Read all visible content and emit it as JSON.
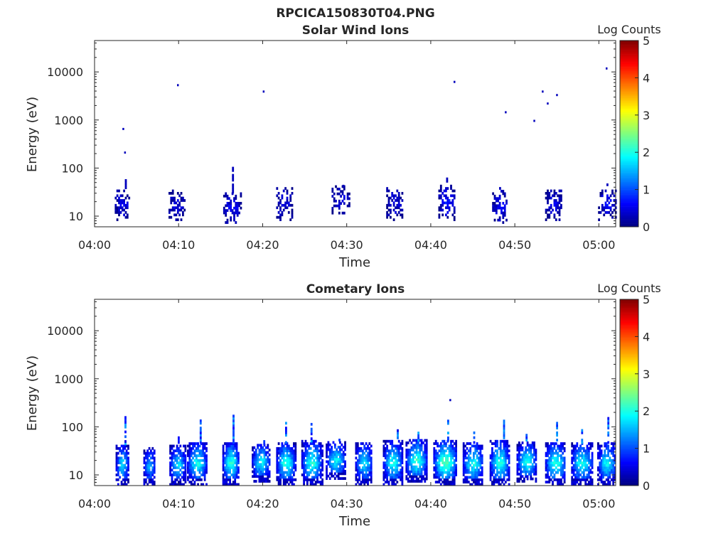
{
  "figure": {
    "title": "RPCICA150830T04.PNG"
  },
  "colormap": [
    "#00007f",
    "#0000ff",
    "#007fff",
    "#00ffff",
    "#7fff7f",
    "#ffff00",
    "#ff7f00",
    "#ff0000",
    "#7f0000"
  ],
  "chart_data": [
    {
      "type": "heatmap",
      "title": "Solar Wind Ions",
      "xlabel": "Time",
      "ylabel": "Energy (eV)",
      "xlim": [
        "04:00",
        "05:02"
      ],
      "xticks": [
        "04:00",
        "04:10",
        "04:20",
        "04:30",
        "04:40",
        "04:50",
        "05:00"
      ],
      "yscale": "log",
      "ylim": [
        6,
        45000
      ],
      "yticks": [
        10,
        100,
        1000,
        10000
      ],
      "ytick_labels": [
        "10",
        "100",
        "1000",
        "10000"
      ],
      "colorbar": {
        "label": "Log Counts",
        "range": [
          0,
          5
        ],
        "ticks": [
          "0",
          "1",
          "2",
          "3",
          "4",
          "5"
        ]
      },
      "scatter_points": [
        {
          "t": 3.4,
          "e": 650,
          "c": 0.3
        },
        {
          "t": 3.6,
          "e": 210,
          "c": 0.3
        },
        {
          "t": 9.9,
          "e": 5300,
          "c": 0.3
        },
        {
          "t": 20.1,
          "e": 3900,
          "c": 0.3
        },
        {
          "t": 42.8,
          "e": 6200,
          "c": 0.3
        },
        {
          "t": 48.9,
          "e": 1450,
          "c": 0.3
        },
        {
          "t": 52.3,
          "e": 960,
          "c": 0.3
        },
        {
          "t": 53.3,
          "e": 3900,
          "c": 0.3
        },
        {
          "t": 53.9,
          "e": 2200,
          "c": 0.3
        },
        {
          "t": 55.0,
          "e": 3300,
          "c": 0.3
        },
        {
          "t": 60.9,
          "e": 11800,
          "c": 0.3
        }
      ],
      "bursts": [
        {
          "t0": 2.4,
          "t1": 4.1,
          "emin": 8,
          "emax": 33,
          "peak": 0.5,
          "spike_e": 55
        },
        {
          "t0": 8.8,
          "t1": 10.6,
          "emin": 8,
          "emax": 32,
          "peak": 0.5,
          "spike_e": 32
        },
        {
          "t0": 15.3,
          "t1": 17.3,
          "emin": 7,
          "emax": 30,
          "peak": 0.6,
          "spike_e": 105
        },
        {
          "t0": 21.6,
          "t1": 23.4,
          "emin": 8,
          "emax": 36,
          "peak": 0.5,
          "spike_e": 36
        },
        {
          "t0": 28.2,
          "t1": 30.2,
          "emin": 11,
          "emax": 40,
          "peak": 0.5,
          "spike_e": 44
        },
        {
          "t0": 34.7,
          "t1": 36.6,
          "emin": 8,
          "emax": 40,
          "peak": 0.5,
          "spike_e": 44
        },
        {
          "t0": 40.9,
          "t1": 42.8,
          "emin": 8,
          "emax": 45,
          "peak": 0.7,
          "spike_e": 65
        },
        {
          "t0": 47.3,
          "t1": 49.1,
          "emin": 7,
          "emax": 32,
          "peak": 0.6,
          "spike_e": 55
        },
        {
          "t0": 53.6,
          "t1": 55.6,
          "emin": 8,
          "emax": 35,
          "peak": 0.5,
          "spike_e": 35
        },
        {
          "t0": 59.9,
          "t1": 62.0,
          "emin": 8,
          "emax": 38,
          "peak": 0.6,
          "spike_e": 44
        }
      ]
    },
    {
      "type": "heatmap",
      "title": "Cometary Ions",
      "xlabel": "Time",
      "ylabel": "Energy (eV)",
      "xlim": [
        "04:00",
        "05:02"
      ],
      "xticks": [
        "04:00",
        "04:10",
        "04:20",
        "04:30",
        "04:40",
        "04:50",
        "05:00"
      ],
      "yscale": "log",
      "ylim": [
        6,
        45000
      ],
      "yticks": [
        10,
        100,
        1000,
        10000
      ],
      "ytick_labels": [
        "10",
        "100",
        "1000",
        "10000"
      ],
      "colorbar": {
        "label": "Log Counts",
        "range": [
          0,
          5
        ],
        "ticks": [
          "0",
          "1",
          "2",
          "3",
          "4",
          "5"
        ]
      },
      "scatter_points": [
        {
          "t": 42.3,
          "e": 360,
          "c": 0.3
        }
      ],
      "bursts": [
        {
          "t0": 2.5,
          "t1": 4.0,
          "emin": 6,
          "emax": 42,
          "peak": 1.8,
          "spike_e": 150
        },
        {
          "t0": 5.8,
          "t1": 7.2,
          "emin": 6,
          "emax": 35,
          "peak": 1.5,
          "spike_e": 35
        },
        {
          "t0": 8.9,
          "t1": 10.8,
          "emin": 6,
          "emax": 40,
          "peak": 1.8,
          "spike_e": 75
        },
        {
          "t0": 11.0,
          "t1": 13.3,
          "emin": 6,
          "emax": 45,
          "peak": 2.0,
          "spike_e": 130
        },
        {
          "t0": 15.2,
          "t1": 17.1,
          "emin": 6,
          "emax": 45,
          "peak": 2.2,
          "spike_e": 170
        },
        {
          "t0": 18.7,
          "t1": 20.8,
          "emin": 7,
          "emax": 42,
          "peak": 1.9,
          "spike_e": 65
        },
        {
          "t0": 21.6,
          "t1": 23.8,
          "emin": 6,
          "emax": 45,
          "peak": 2.1,
          "spike_e": 125
        },
        {
          "t0": 24.6,
          "t1": 27.0,
          "emin": 6,
          "emax": 48,
          "peak": 2.1,
          "spike_e": 110
        },
        {
          "t0": 27.5,
          "t1": 29.8,
          "emin": 8,
          "emax": 45,
          "peak": 1.9,
          "spike_e": 55
        },
        {
          "t0": 31.0,
          "t1": 33.0,
          "emin": 6,
          "emax": 45,
          "peak": 1.8,
          "spike_e": 50
        },
        {
          "t0": 34.3,
          "t1": 36.6,
          "emin": 6,
          "emax": 50,
          "peak": 2.0,
          "spike_e": 85
        },
        {
          "t0": 37.0,
          "t1": 39.5,
          "emin": 7,
          "emax": 50,
          "peak": 2.2,
          "spike_e": 90
        },
        {
          "t0": 40.3,
          "t1": 43.0,
          "emin": 6,
          "emax": 50,
          "peak": 2.4,
          "spike_e": 140
        },
        {
          "t0": 43.8,
          "t1": 46.2,
          "emin": 6,
          "emax": 45,
          "peak": 2.0,
          "spike_e": 85
        },
        {
          "t0": 47.0,
          "t1": 49.3,
          "emin": 6,
          "emax": 50,
          "peak": 2.1,
          "spike_e": 130
        },
        {
          "t0": 50.2,
          "t1": 52.5,
          "emin": 7,
          "emax": 45,
          "peak": 2.0,
          "spike_e": 80
        },
        {
          "t0": 53.6,
          "t1": 56.0,
          "emin": 6,
          "emax": 45,
          "peak": 2.1,
          "spike_e": 120
        },
        {
          "t0": 56.7,
          "t1": 59.2,
          "emin": 6,
          "emax": 45,
          "peak": 2.0,
          "spike_e": 85
        },
        {
          "t0": 59.8,
          "t1": 62.0,
          "emin": 6,
          "emax": 45,
          "peak": 1.9,
          "spike_e": 150
        }
      ]
    }
  ]
}
